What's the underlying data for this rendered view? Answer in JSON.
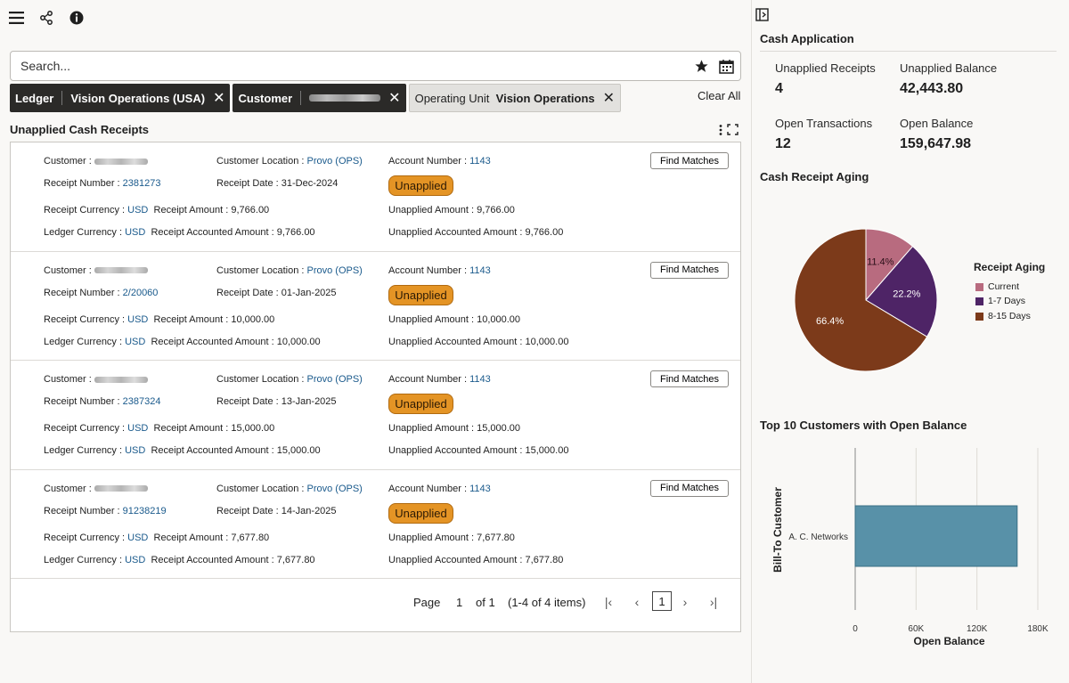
{
  "toolbar": {
    "menu_icon": "hamburger-icon",
    "share_icon": "share-icon",
    "info_icon": "info-icon"
  },
  "search": {
    "placeholder": "Search..."
  },
  "filters": {
    "ledger": {
      "label": "Ledger",
      "value": "Vision Operations (USA)"
    },
    "customer": {
      "label": "Customer"
    },
    "operating_unit": {
      "label": "Operating Unit",
      "value": "Vision Operations"
    },
    "clear_all": "Clear All"
  },
  "receipts_title": "Unapplied Cash Receipts",
  "labels": {
    "customer": "Customer :",
    "customer_location": "Customer Location :",
    "account_number": "Account Number :",
    "receipt_number": "Receipt Number :",
    "receipt_date": "Receipt Date :",
    "receipt_currency": "Receipt Currency :",
    "receipt_amount": "Receipt Amount :",
    "unapplied_amount": "Unapplied Amount :",
    "ledger_currency": "Ledger Currency :",
    "receipt_accounted_amount": "Receipt Accounted Amount :",
    "unapplied_accounted_amount": "Unapplied Accounted Amount :",
    "find_matches": "Find Matches",
    "status": "Unapplied"
  },
  "receipts": [
    {
      "location": "Provo (OPS)",
      "account": "1143",
      "number": "2381273",
      "date": "31-Dec-2024",
      "currency": "USD",
      "amount": "9,766.00",
      "unapplied": "9,766.00",
      "ledger_currency": "USD",
      "accounted": "9,766.00",
      "unapplied_accounted": "9,766.00"
    },
    {
      "location": "Provo (OPS)",
      "account": "1143",
      "number": "2/20060",
      "date": "01-Jan-2025",
      "currency": "USD",
      "amount": "10,000.00",
      "unapplied": "10,000.00",
      "ledger_currency": "USD",
      "accounted": "10,000.00",
      "unapplied_accounted": "10,000.00"
    },
    {
      "location": "Provo (OPS)",
      "account": "1143",
      "number": "2387324",
      "date": "13-Jan-2025",
      "currency": "USD",
      "amount": "15,000.00",
      "unapplied": "15,000.00",
      "ledger_currency": "USD",
      "accounted": "15,000.00",
      "unapplied_accounted": "15,000.00"
    },
    {
      "location": "Provo (OPS)",
      "account": "1143",
      "number": "91238219",
      "date": "14-Jan-2025",
      "currency": "USD",
      "amount": "7,677.80",
      "unapplied": "7,677.80",
      "ledger_currency": "USD",
      "accounted": "7,677.80",
      "unapplied_accounted": "7,677.80"
    }
  ],
  "pagination": {
    "page_label": "Page",
    "page": "1",
    "of": "of 1",
    "items": "(1-4 of 4 items)",
    "current": "1"
  },
  "cash_application": {
    "title": "Cash Application",
    "unapplied_receipts_label": "Unapplied Receipts",
    "unapplied_receipts": "4",
    "unapplied_balance_label": "Unapplied Balance",
    "unapplied_balance": "42,443.80",
    "open_transactions_label": "Open Transactions",
    "open_transactions": "12",
    "open_balance_label": "Open Balance",
    "open_balance": "159,647.98"
  },
  "aging_title": "Cash Receipt Aging",
  "top10_title": "Top 10 Customers with Open Balance",
  "colors": {
    "current": "#b86b7f",
    "days_1_7": "#4e2466",
    "days_8_15": "#7c3a1a",
    "bar": "#5891a8",
    "badge": "#e49425"
  },
  "chart_data": [
    {
      "type": "pie",
      "title": "Receipt Aging",
      "categories": [
        "Current",
        "1-7 Days",
        "8-15 Days"
      ],
      "values": [
        11.4,
        22.2,
        66.4
      ],
      "labels": [
        "11.4%",
        "22.2%",
        "66.4%"
      ],
      "legend": "right"
    },
    {
      "type": "bar",
      "orientation": "horizontal",
      "categories": [
        "A. C. Networks"
      ],
      "values": [
        159647.98
      ],
      "xlabel": "Open Balance",
      "ylabel": "Bill-To Customer",
      "xlim": [
        0,
        180000
      ],
      "ticks": [
        "0",
        "60K",
        "120K",
        "180K"
      ],
      "grid": true
    }
  ]
}
